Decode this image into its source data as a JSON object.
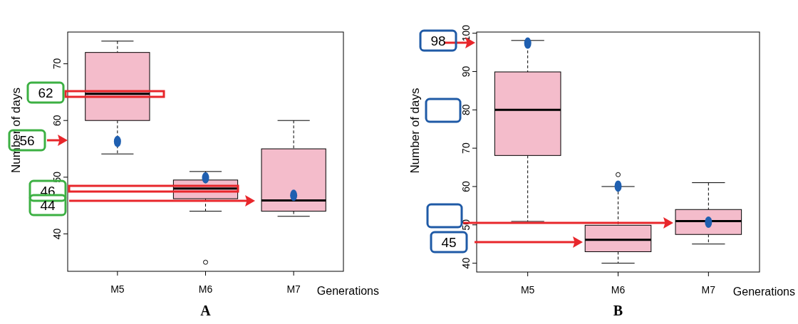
{
  "chart_data": [
    {
      "type": "box",
      "title": "A",
      "xlabel": "Generations",
      "ylabel": "Number of days",
      "categories": [
        "M5",
        "M6",
        "M7"
      ],
      "ylim": [
        33.4,
        75.6
      ],
      "yticks": [
        40,
        50,
        60,
        70
      ],
      "grid": false,
      "series": [
        {
          "color": "#f4bccb",
          "boxes": [
            {
              "low": 54.1,
              "q1": 60,
              "median": 64.7,
              "q3": 72,
              "high": 74,
              "mean": 56.3
            },
            {
              "low": 44,
              "q1": 46.2,
              "median": 48,
              "q3": 49.5,
              "high": 51,
              "mean": 49.9,
              "outliers": [
                35
              ]
            },
            {
              "low": 43.1,
              "q1": 44,
              "median": 45.9,
              "q3": 55,
              "high": 60,
              "mean": 46.8
            }
          ]
        }
      ],
      "annotations": [
        "62",
        "56",
        "46",
        "44"
      ]
    },
    {
      "type": "box",
      "title": "B",
      "xlabel": "Generations",
      "ylabel": "Number of days",
      "categories": [
        "M5",
        "M6",
        "M7"
      ],
      "ylim": [
        37.7,
        100.3
      ],
      "yticks": [
        40,
        50,
        60,
        70,
        80,
        90,
        100
      ],
      "grid": false,
      "series": [
        {
          "color": "#f4bccb",
          "boxes": [
            {
              "low": 50.9,
              "q1": 68.1,
              "median": 80,
              "q3": 89.9,
              "high": 98.1,
              "mean": 97.4
            },
            {
              "low": 40,
              "q1": 43,
              "median": 46.1,
              "q3": 49.9,
              "high": 60,
              "mean": 60.1,
              "outliers": [
                63.1
              ]
            },
            {
              "low": 45,
              "q1": 47.5,
              "median": 51,
              "q3": 54,
              "high": 61,
              "mean": 50.7
            }
          ]
        }
      ],
      "annotations": [
        "98",
        "45"
      ]
    }
  ]
}
